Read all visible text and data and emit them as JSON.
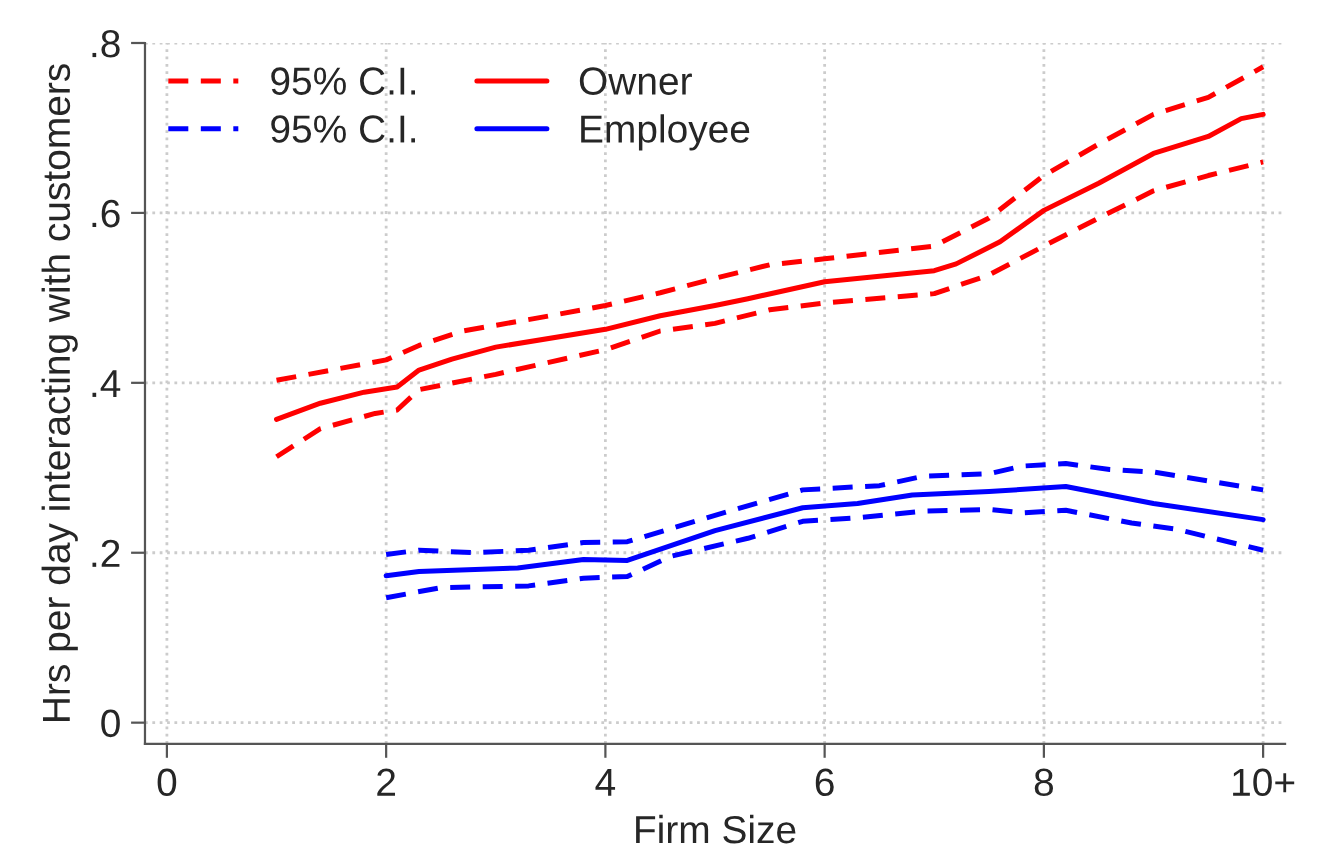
{
  "chart_data": {
    "type": "line",
    "xlabel": "Firm Size",
    "ylabel": "Hrs per day interacting with customers",
    "xlim": [
      -0.2,
      10.2
    ],
    "ylim": [
      -0.025,
      0.8
    ],
    "xticks": [
      0,
      2,
      4,
      6,
      8,
      {
        "value": 10,
        "label": "10+"
      }
    ],
    "yticks": [
      0,
      {
        "value": 0.2,
        "label": ".2"
      },
      {
        "value": 0.4,
        "label": ".4"
      },
      {
        "value": 0.6,
        "label": ".6"
      },
      {
        "value": 0.8,
        "label": ".8"
      }
    ],
    "grid": true,
    "legend": "top left",
    "series": [
      {
        "name": "95% C.I.",
        "color": "#ff0000",
        "line_style": "dashed",
        "x": [
          1,
          2,
          2.3,
          2.7,
          3.5,
          4,
          4.5,
          5,
          5.5,
          6,
          7,
          7.5,
          8,
          8.5,
          9,
          9.5,
          10
        ],
        "values": [
          0.403,
          0.427,
          0.444,
          0.461,
          0.479,
          0.491,
          0.506,
          0.523,
          0.539,
          0.546,
          0.561,
          0.594,
          0.644,
          0.681,
          0.716,
          0.736,
          0.772
        ]
      },
      {
        "name": "95% C.I.",
        "color": "#0000ff",
        "line_style": "dashed",
        "x": [
          2,
          2.3,
          2.8,
          3.3,
          3.8,
          4.2,
          5,
          5.8,
          6.5,
          6.9,
          7.5,
          7.8,
          8.2,
          8.6,
          9,
          10
        ],
        "values": [
          0.198,
          0.203,
          0.2,
          0.203,
          0.212,
          0.213,
          0.244,
          0.274,
          0.279,
          0.29,
          0.293,
          0.302,
          0.305,
          0.298,
          0.295,
          0.274
        ]
      },
      {
        "name": "Owner",
        "color": "#ff0000",
        "line_style": "solid",
        "x": [
          1,
          1.4,
          1.8,
          2.1,
          2.3,
          2.6,
          3,
          4,
          4.5,
          5,
          5.3,
          6,
          7,
          7.2,
          7.6,
          8,
          8.5,
          9,
          9.5,
          9.8,
          10
        ],
        "values": [
          0.357,
          0.376,
          0.389,
          0.395,
          0.415,
          0.428,
          0.442,
          0.463,
          0.479,
          0.491,
          0.499,
          0.519,
          0.532,
          0.54,
          0.566,
          0.603,
          0.635,
          0.67,
          0.69,
          0.711,
          0.716
        ]
      },
      {
        "name": "Employee",
        "color": "#0000ff",
        "line_style": "solid",
        "x": [
          2,
          2.3,
          3.2,
          3.8,
          4.2,
          5,
          5.8,
          6.3,
          6.8,
          7.5,
          8.2,
          9,
          10
        ],
        "values": [
          0.173,
          0.178,
          0.182,
          0.192,
          0.191,
          0.226,
          0.253,
          0.258,
          0.268,
          0.272,
          0.278,
          0.258,
          0.239
        ]
      },
      {
        "color": "#ff0000",
        "line_style": "dashed",
        "x": [
          1,
          1.4,
          1.9,
          2.1,
          2.3,
          3,
          4,
          4.5,
          5,
          5.5,
          6,
          7,
          7.5,
          8,
          8.5,
          9,
          9.5,
          10
        ],
        "values": [
          0.313,
          0.346,
          0.364,
          0.368,
          0.392,
          0.41,
          0.439,
          0.461,
          0.47,
          0.486,
          0.494,
          0.505,
          0.527,
          0.561,
          0.594,
          0.626,
          0.644,
          0.66
        ]
      },
      {
        "color": "#0000ff",
        "line_style": "dashed",
        "x": [
          2,
          2.5,
          3.3,
          3.8,
          4.2,
          4.6,
          5.3,
          5.8,
          6.3,
          6.9,
          7.5,
          7.8,
          8.2,
          8.8,
          9.2,
          10
        ],
        "values": [
          0.147,
          0.159,
          0.161,
          0.17,
          0.172,
          0.196,
          0.217,
          0.237,
          0.241,
          0.249,
          0.251,
          0.247,
          0.25,
          0.235,
          0.228,
          0.203
        ]
      }
    ]
  }
}
